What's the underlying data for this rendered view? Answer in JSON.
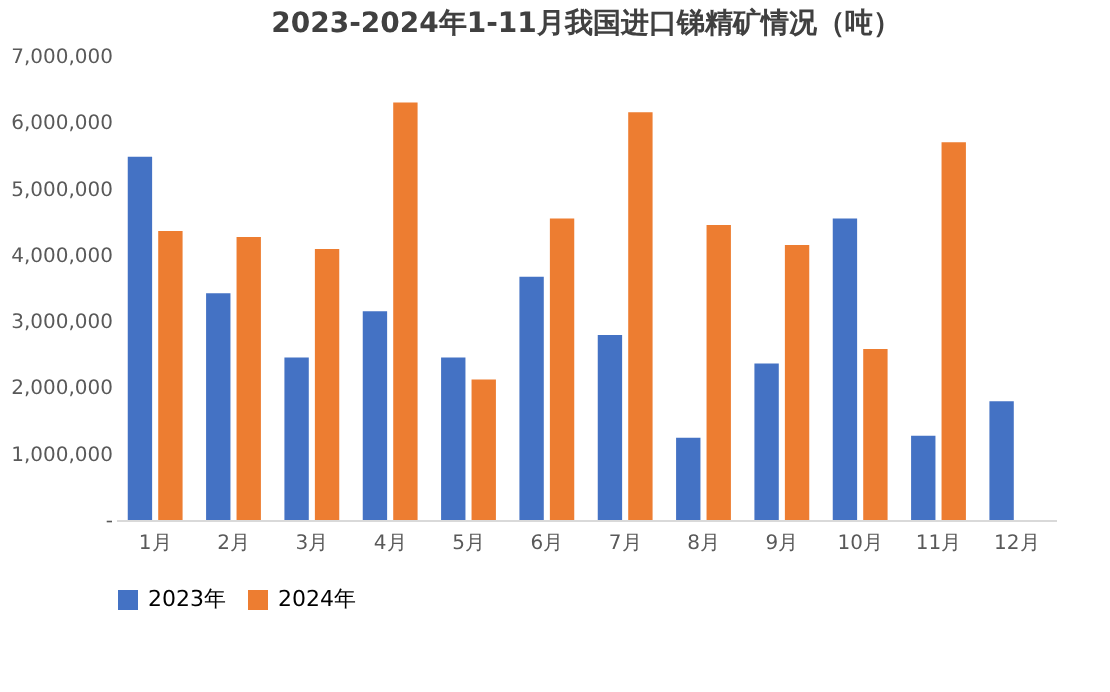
{
  "chart_data": {
    "type": "bar",
    "title": "2023-2024年1-11月我国进口锑精矿情况（吨）",
    "categories": [
      "1月",
      "2月",
      "3月",
      "4月",
      "5月",
      "6月",
      "7月",
      "8月",
      "9月",
      "10月",
      "11月",
      "12月"
    ],
    "series": [
      {
        "name": "2023年",
        "color": "#4472c4",
        "values": [
          5480000,
          3420000,
          2450000,
          3150000,
          2450000,
          3670000,
          2790000,
          1240000,
          2360000,
          4550000,
          1270000,
          1790000
        ]
      },
      {
        "name": "2024年",
        "color": "#ed7d31",
        "values": [
          4360000,
          4270000,
          4090000,
          6300000,
          2120000,
          4550000,
          6150000,
          4450000,
          4150000,
          2580000,
          5700000,
          null
        ]
      }
    ],
    "ylim": [
      0,
      7000000
    ],
    "yticks": [
      {
        "value": 0,
        "label": "-"
      },
      {
        "value": 1000000,
        "label": "1,000,000"
      },
      {
        "value": 2000000,
        "label": "2,000,000"
      },
      {
        "value": 3000000,
        "label": "3,000,000"
      },
      {
        "value": 4000000,
        "label": "4,000,000"
      },
      {
        "value": 5000000,
        "label": "5,000,000"
      },
      {
        "value": 6000000,
        "label": "6,000,000"
      },
      {
        "value": 7000000,
        "label": "7,000,000"
      }
    ],
    "grid": false,
    "legend": "bottom"
  }
}
